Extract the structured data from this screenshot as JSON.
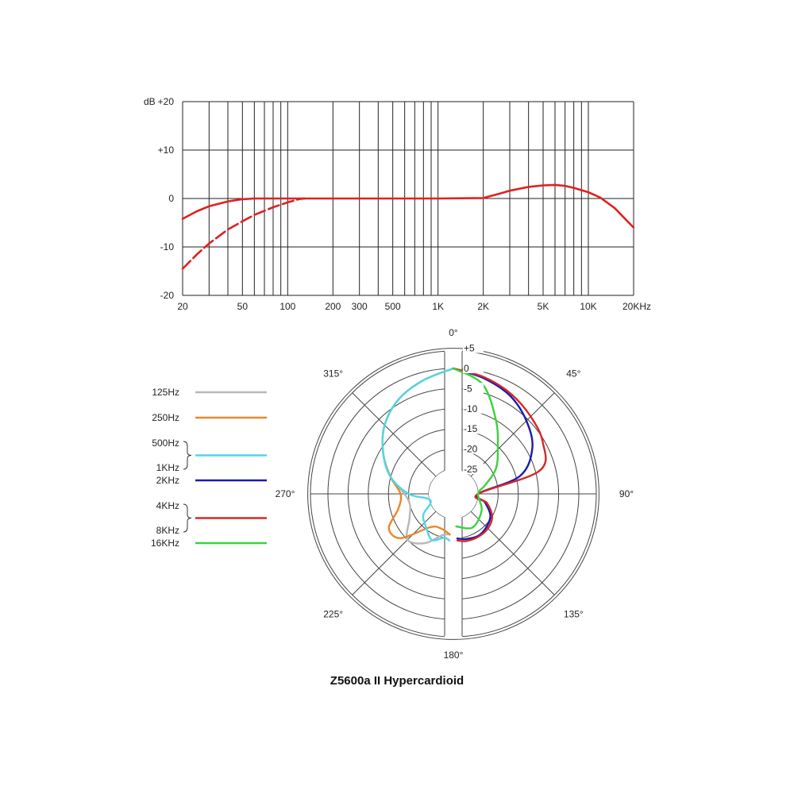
{
  "caption": "Z5600a II Hypercardioid",
  "chart_data": [
    {
      "type": "line",
      "chart": "frequency-response",
      "xscale": "log",
      "xlim": [
        20,
        20000
      ],
      "ylim": [
        -20,
        20
      ],
      "grid": true,
      "y_unit": "dB",
      "y_ticks": [
        {
          "value": 20,
          "label": "+20"
        },
        {
          "value": 10,
          "label": "+10"
        },
        {
          "value": 0,
          "label": "0"
        },
        {
          "value": -10,
          "label": "-10"
        },
        {
          "value": -20,
          "label": "-20"
        }
      ],
      "x_ticks": [
        {
          "value": 20,
          "label": "20"
        },
        {
          "value": 50,
          "label": "50"
        },
        {
          "value": 100,
          "label": "100"
        },
        {
          "value": 200,
          "label": "200"
        },
        {
          "value": 300,
          "label": "300"
        },
        {
          "value": 500,
          "label": "500"
        },
        {
          "value": 1000,
          "label": "1K"
        },
        {
          "value": 2000,
          "label": "2K"
        },
        {
          "value": 5000,
          "label": "5K"
        },
        {
          "value": 10000,
          "label": "10K"
        },
        {
          "value": 20000,
          "label": "20KHz"
        }
      ],
      "series": [
        {
          "style": "solid",
          "color": "#e02020",
          "points": [
            [
              20,
              -4.2
            ],
            [
              25,
              -2.6
            ],
            [
              30,
              -1.6
            ],
            [
              40,
              -0.6
            ],
            [
              50,
              -0.15
            ],
            [
              60,
              0
            ],
            [
              100,
              0
            ],
            [
              1000,
              0
            ],
            [
              2000,
              0.1
            ],
            [
              2500,
              0.9
            ],
            [
              3000,
              1.6
            ],
            [
              4000,
              2.4
            ],
            [
              5000,
              2.7
            ],
            [
              6000,
              2.8
            ],
            [
              7000,
              2.6
            ],
            [
              8000,
              2.2
            ],
            [
              10000,
              1.3
            ],
            [
              12000,
              0.2
            ],
            [
              15000,
              -2
            ],
            [
              20000,
              -6
            ]
          ]
        },
        {
          "style": "dashed",
          "color": "#e02020",
          "points": [
            [
              20,
              -14.5
            ],
            [
              25,
              -11.5
            ],
            [
              30,
              -9.3
            ],
            [
              40,
              -6.4
            ],
            [
              50,
              -4.7
            ],
            [
              60,
              -3.4
            ],
            [
              80,
              -1.8
            ],
            [
              100,
              -0.8
            ],
            [
              120,
              -0.1
            ],
            [
              130,
              0
            ]
          ]
        }
      ]
    },
    {
      "type": "polar",
      "chart": "polar-pattern",
      "r_ticks": [
        {
          "value": 5,
          "label": "+5"
        },
        {
          "value": 0,
          "label": "0"
        },
        {
          "value": -5,
          "label": "-5"
        },
        {
          "value": -10,
          "label": "-10"
        },
        {
          "value": -15,
          "label": "-15"
        },
        {
          "value": -20,
          "label": "-20"
        },
        {
          "value": -25,
          "label": "-25"
        }
      ],
      "angle_labels": [
        {
          "angle": 0,
          "label": "0°"
        },
        {
          "angle": 45,
          "label": "45°"
        },
        {
          "angle": 90,
          "label": "90°"
        },
        {
          "angle": 135,
          "label": "135°"
        },
        {
          "angle": 180,
          "label": "180°"
        },
        {
          "angle": 225,
          "label": "225°"
        },
        {
          "angle": 270,
          "label": "270°"
        },
        {
          "angle": 315,
          "label": "315°"
        }
      ],
      "legend": [
        {
          "labels": [
            "125Hz"
          ],
          "color": "#b8b8b8"
        },
        {
          "labels": [
            "250Hz"
          ],
          "color": "#e8882a"
        },
        {
          "labels": [
            "500Hz",
            "1KHz"
          ],
          "color": "#4fd7e6",
          "brace": true
        },
        {
          "labels": [
            "2KHz"
          ],
          "color": "#1a1ab0"
        },
        {
          "labels": [
            "4KHz",
            "8KHz"
          ],
          "color": "#d62828",
          "brace": true
        },
        {
          "labels": [
            "16KHz"
          ],
          "color": "#3ad33a"
        }
      ],
      "series": [
        {
          "side": "left",
          "color": "#b8b8b8",
          "points": [
            [
              0,
              0
            ],
            [
              15,
              -2
            ],
            [
              30,
              -4
            ],
            [
              45,
              -7
            ],
            [
              60,
              -11
            ],
            [
              75,
              -15
            ],
            [
              90,
              -19
            ],
            [
              105,
              -20
            ],
            [
              120,
              -18.5
            ],
            [
              135,
              -15
            ],
            [
              150,
              -17
            ],
            [
              165,
              -20.5
            ],
            [
              175,
              -21
            ]
          ]
        },
        {
          "side": "left",
          "color": "#e8882a",
          "points": [
            [
              0,
              0
            ],
            [
              15,
              -2
            ],
            [
              30,
              -4
            ],
            [
              45,
              -7
            ],
            [
              60,
              -11
            ],
            [
              75,
              -15
            ],
            [
              90,
              -18
            ],
            [
              105,
              -17
            ],
            [
              118,
              -13
            ],
            [
              130,
              -14
            ],
            [
              145,
              -21
            ],
            [
              160,
              -22
            ],
            [
              175,
              -21
            ]
          ]
        },
        {
          "side": "left",
          "color": "#4fd7e6",
          "points": [
            [
              0,
              0
            ],
            [
              15,
              -2
            ],
            [
              30,
              -4
            ],
            [
              45,
              -7
            ],
            [
              60,
              -11
            ],
            [
              75,
              -15
            ],
            [
              90,
              -20
            ],
            [
              100,
              -24.5
            ],
            [
              112,
              -25
            ],
            [
              125,
              -22
            ],
            [
              140,
              -20.5
            ],
            [
              155,
              -18.5
            ],
            [
              168,
              -20
            ],
            [
              175,
              -19.5
            ]
          ]
        },
        {
          "side": "right",
          "color": "#1a1ab0",
          "points": [
            [
              0,
              0
            ],
            [
              15,
              -1.5
            ],
            [
              30,
              -3
            ],
            [
              45,
              -5.5
            ],
            [
              60,
              -8.5
            ],
            [
              75,
              -14
            ],
            [
              90,
              -25
            ],
            [
              105,
              -23
            ],
            [
              120,
              -20.5
            ],
            [
              135,
              -19.5
            ],
            [
              150,
              -19
            ],
            [
              165,
              -19.5
            ],
            [
              175,
              -20
            ]
          ]
        },
        {
          "side": "right",
          "color": "#d62828",
          "points": [
            [
              0,
              0
            ],
            [
              15,
              -1.2
            ],
            [
              30,
              -2.5
            ],
            [
              45,
              -4
            ],
            [
              60,
              -5.5
            ],
            [
              75,
              -9
            ],
            [
              90,
              -25
            ],
            [
              105,
              -22.5
            ],
            [
              120,
              -20
            ],
            [
              135,
              -19
            ],
            [
              150,
              -18.8
            ],
            [
              165,
              -19
            ],
            [
              175,
              -19.5
            ]
          ]
        },
        {
          "side": "right",
          "color": "#3ad33a",
          "points": [
            [
              0,
              0
            ],
            [
              15,
              -3
            ],
            [
              30,
              -10
            ],
            [
              45,
              -15.5
            ],
            [
              60,
              -19
            ],
            [
              75,
              -23
            ],
            [
              90,
              -25
            ],
            [
              120,
              -23
            ],
            [
              150,
              -21.5
            ],
            [
              175,
              -23
            ]
          ]
        }
      ]
    }
  ]
}
